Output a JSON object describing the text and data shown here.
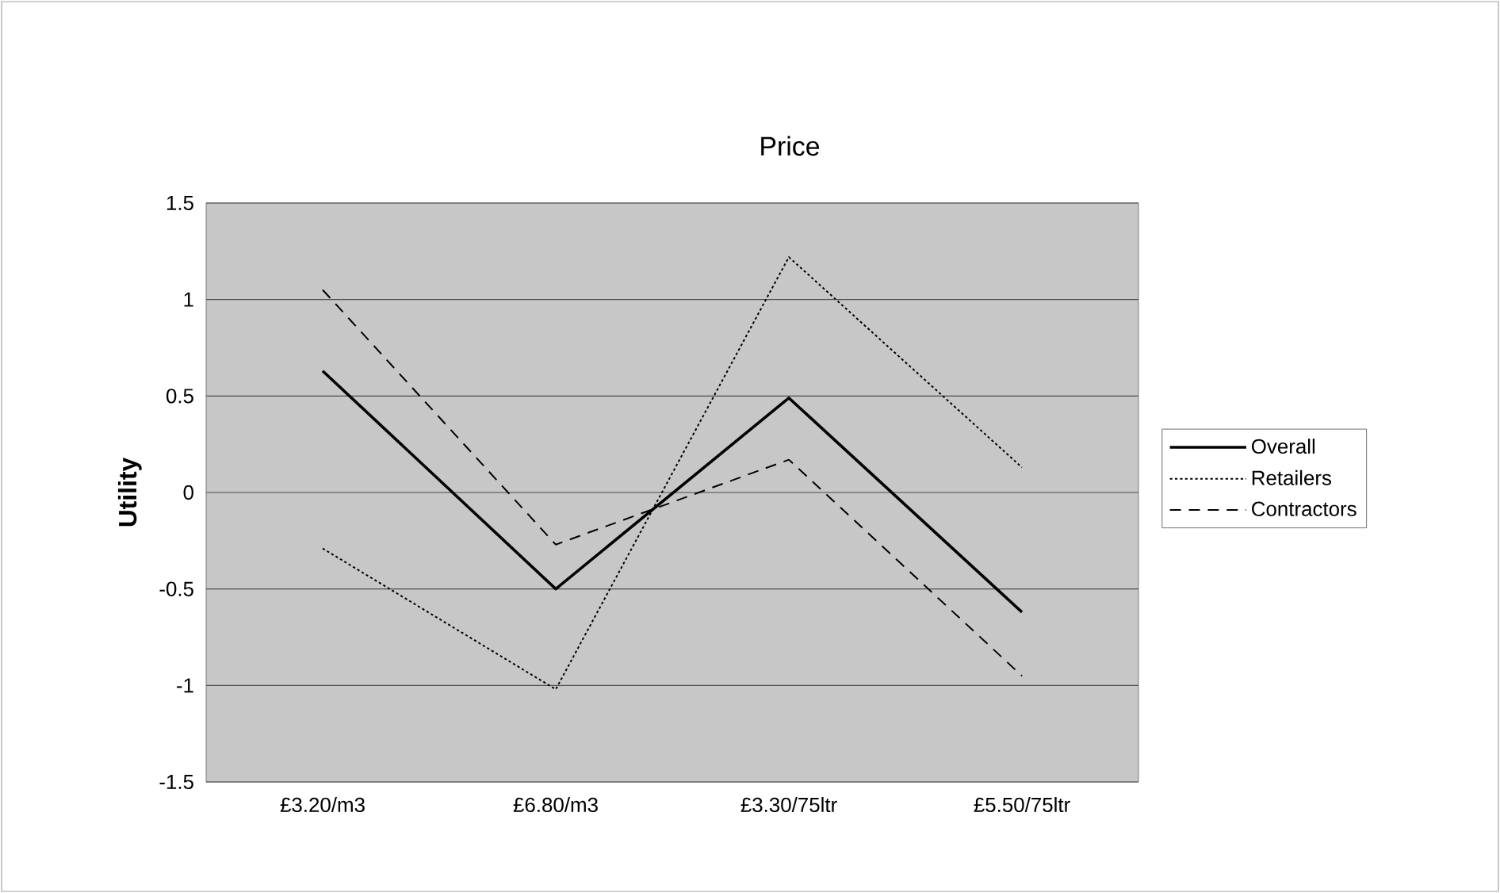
{
  "chart_data": {
    "type": "line",
    "title": "Price",
    "ylabel": "Utility",
    "categories": [
      "£3.20/m3",
      "£6.80/m3",
      "£3.30/75ltr",
      "£5.50/75ltr"
    ],
    "series": [
      {
        "name": "Overall",
        "color": "#000000",
        "line_style": "solid",
        "values": [
          0.63,
          -0.5,
          0.49,
          -0.62
        ]
      },
      {
        "name": "Retailers",
        "color": "#000000",
        "line_style": "dotted",
        "values": [
          -0.29,
          -1.02,
          1.22,
          0.13
        ]
      },
      {
        "name": "Contractors",
        "color": "#000000",
        "line_style": "dashed",
        "values": [
          1.05,
          -0.27,
          0.17,
          -0.95
        ]
      }
    ],
    "ylim": [
      -1.5,
      1.5
    ],
    "yticks": [
      -1.5,
      -1,
      -0.5,
      0,
      0.5,
      1,
      1.5
    ],
    "grid": "y",
    "legend": "right",
    "marker": "none"
  }
}
